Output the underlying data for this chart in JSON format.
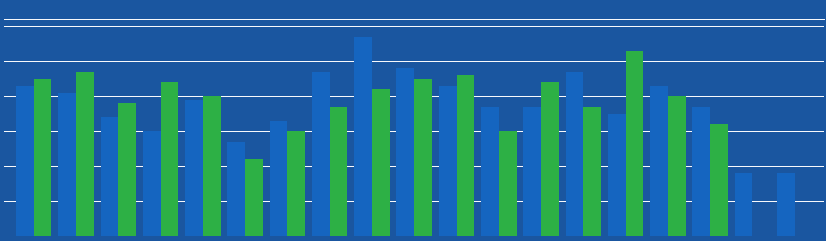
{
  "background_color": "#1a56a0",
  "plot_bg_color": "#1a56a0",
  "grid_color": "#ffffff",
  "bar_color_blue": "#1565c0",
  "bar_color_green": "#2db045",
  "blue_values": [
    43,
    41,
    34,
    30,
    39,
    27,
    33,
    47,
    57,
    48,
    43,
    37,
    37,
    47,
    35,
    43,
    37,
    18,
    18
  ],
  "green_values": [
    45,
    47,
    38,
    44,
    40,
    22,
    30,
    37,
    42,
    45,
    46,
    30,
    44,
    37,
    53,
    40,
    32,
    0,
    0
  ],
  "ylim": [
    0,
    62
  ],
  "yticks": [
    10,
    20,
    30,
    40,
    50,
    60
  ]
}
